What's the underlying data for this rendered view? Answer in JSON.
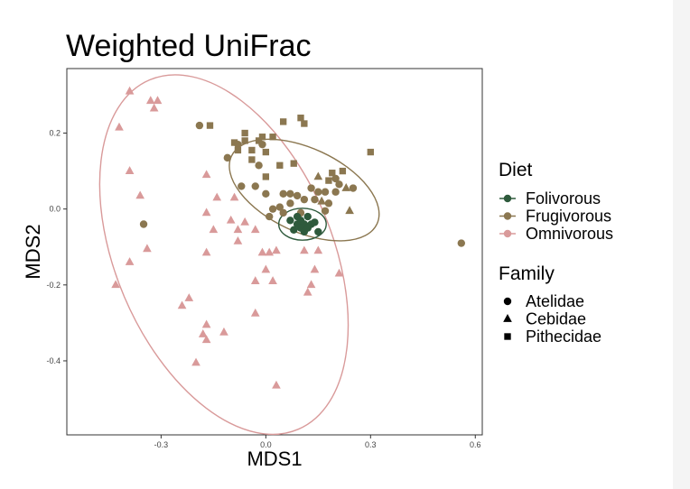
{
  "chart_data": {
    "type": "scatter",
    "title": "Weighted UniFrac",
    "xlabel": "MDS1",
    "ylabel": "MDS2",
    "xlim": [
      -0.57,
      0.62
    ],
    "ylim": [
      -0.595,
      0.37
    ],
    "x_ticks": [
      -0.3,
      0.0,
      0.3,
      0.6
    ],
    "x_tick_labels": [
      "-0.3",
      "0.0",
      "0.3",
      "0.6"
    ],
    "y_ticks": [
      -0.4,
      -0.2,
      0.0,
      0.2
    ],
    "y_tick_labels": [
      "-0.4",
      "-0.2",
      "0.0",
      "0.2"
    ],
    "grid": false,
    "legend_position": "right",
    "legends": [
      {
        "title": "Diet",
        "entries": [
          {
            "label": "Folivorous",
            "color": "#2e5a3c"
          },
          {
            "label": "Frugivorous",
            "color": "#8b7750"
          },
          {
            "label": "Omnivorous",
            "color": "#d99a9a"
          }
        ]
      },
      {
        "title": "Family",
        "entries": [
          {
            "label": "Atelidae",
            "shape": "circle"
          },
          {
            "label": "Cebidae",
            "shape": "triangle"
          },
          {
            "label": "Pithecidae",
            "shape": "square"
          }
        ]
      }
    ],
    "ellipses": [
      {
        "diet": "Omnivorous",
        "center": [
          -0.12,
          -0.12
        ],
        "rx": 0.31,
        "ry": 0.5,
        "angle": -23,
        "color": "#d99a9a"
      },
      {
        "diet": "Frugivorous",
        "center": [
          0.11,
          0.05
        ],
        "rx": 0.23,
        "ry": 0.11,
        "angle": 25,
        "color": "#8b7750"
      },
      {
        "diet": "Folivorous",
        "center": [
          0.105,
          -0.04
        ],
        "rx": 0.068,
        "ry": 0.042,
        "angle": 0,
        "color": "#2e5a3c"
      }
    ],
    "series": [
      {
        "name": "Folivorous",
        "color": "#2e5a3c",
        "points": [
          [
            0.09,
            -0.02,
            "circle"
          ],
          [
            0.12,
            -0.02,
            "circle"
          ],
          [
            0.09,
            -0.04,
            "circle"
          ],
          [
            0.11,
            -0.04,
            "circle"
          ],
          [
            0.13,
            -0.04,
            "circle"
          ],
          [
            0.1,
            -0.05,
            "circle"
          ],
          [
            0.12,
            -0.05,
            "circle"
          ],
          [
            0.08,
            -0.055,
            "circle"
          ],
          [
            0.11,
            -0.06,
            "circle"
          ],
          [
            0.15,
            -0.06,
            "circle"
          ],
          [
            0.07,
            -0.03,
            "circle"
          ],
          [
            0.1,
            -0.03,
            "circle"
          ],
          [
            0.14,
            -0.035,
            "circle"
          ]
        ]
      },
      {
        "name": "Frugivorous",
        "color": "#8b7750",
        "points": [
          [
            -0.19,
            0.22,
            "circle"
          ],
          [
            -0.16,
            0.22,
            "square"
          ],
          [
            0.11,
            0.225,
            "square"
          ],
          [
            -0.09,
            0.175,
            "square"
          ],
          [
            -0.06,
            0.18,
            "square"
          ],
          [
            -0.08,
            0.17,
            "circle"
          ],
          [
            -0.02,
            0.18,
            "square"
          ],
          [
            -0.01,
            0.19,
            "square"
          ],
          [
            -0.01,
            0.17,
            "circle"
          ],
          [
            -0.04,
            0.155,
            "square"
          ],
          [
            0.0,
            0.15,
            "square"
          ],
          [
            -0.08,
            0.155,
            "square"
          ],
          [
            -0.11,
            0.135,
            "circle"
          ],
          [
            -0.04,
            0.13,
            "square"
          ],
          [
            0.02,
            0.19,
            "square"
          ],
          [
            -0.06,
            0.2,
            "square"
          ],
          [
            0.05,
            0.23,
            "square"
          ],
          [
            0.1,
            0.24,
            "square"
          ],
          [
            -0.02,
            0.115,
            "circle"
          ],
          [
            0.04,
            0.115,
            "square"
          ],
          [
            0.08,
            0.12,
            "square"
          ],
          [
            0.0,
            0.085,
            "square"
          ],
          [
            0.19,
            0.095,
            "square"
          ],
          [
            0.22,
            0.1,
            "square"
          ],
          [
            0.3,
            0.15,
            "square"
          ],
          [
            0.2,
            0.08,
            "circle"
          ],
          [
            0.15,
            0.085,
            "triangle"
          ],
          [
            0.18,
            0.075,
            "square"
          ],
          [
            0.21,
            0.065,
            "circle"
          ],
          [
            0.23,
            0.055,
            "triangle"
          ],
          [
            0.25,
            0.055,
            "circle"
          ],
          [
            0.2,
            0.045,
            "circle"
          ],
          [
            0.17,
            0.045,
            "circle"
          ],
          [
            -0.07,
            0.06,
            "circle"
          ],
          [
            -0.03,
            0.06,
            "circle"
          ],
          [
            0.05,
            0.04,
            "circle"
          ],
          [
            0.07,
            0.04,
            "circle"
          ],
          [
            0.0,
            0.04,
            "circle"
          ],
          [
            0.09,
            0.035,
            "circle"
          ],
          [
            0.13,
            0.055,
            "circle"
          ],
          [
            0.15,
            0.045,
            "circle"
          ],
          [
            0.11,
            0.025,
            "circle"
          ],
          [
            0.14,
            0.025,
            "circle"
          ],
          [
            0.16,
            0.02,
            "triangle"
          ],
          [
            0.18,
            0.015,
            "circle"
          ],
          [
            0.07,
            0.015,
            "circle"
          ],
          [
            0.04,
            0.005,
            "circle"
          ],
          [
            0.02,
            0.0,
            "circle"
          ],
          [
            0.05,
            -0.01,
            "circle"
          ],
          [
            0.1,
            -0.01,
            "circle"
          ],
          [
            0.17,
            -0.005,
            "circle"
          ],
          [
            0.24,
            -0.005,
            "triangle"
          ],
          [
            0.01,
            -0.02,
            "circle"
          ],
          [
            -0.35,
            -0.04,
            "circle"
          ],
          [
            0.56,
            -0.09,
            "circle"
          ]
        ]
      },
      {
        "name": "Omnivorous",
        "color": "#d99a9a",
        "points": [
          [
            -0.39,
            0.31,
            "triangle"
          ],
          [
            -0.33,
            0.285,
            "triangle"
          ],
          [
            -0.31,
            0.285,
            "triangle"
          ],
          [
            -0.32,
            0.265,
            "triangle"
          ],
          [
            -0.42,
            0.215,
            "triangle"
          ],
          [
            -0.39,
            0.1,
            "triangle"
          ],
          [
            -0.36,
            0.035,
            "triangle"
          ],
          [
            -0.17,
            0.09,
            "triangle"
          ],
          [
            -0.14,
            0.03,
            "triangle"
          ],
          [
            -0.09,
            0.03,
            "triangle"
          ],
          [
            -0.17,
            -0.01,
            "triangle"
          ],
          [
            -0.1,
            -0.03,
            "triangle"
          ],
          [
            -0.06,
            -0.035,
            "triangle"
          ],
          [
            -0.03,
            -0.055,
            "triangle"
          ],
          [
            -0.15,
            -0.055,
            "triangle"
          ],
          [
            -0.08,
            -0.055,
            "triangle"
          ],
          [
            -0.08,
            -0.085,
            "triangle"
          ],
          [
            -0.34,
            -0.105,
            "triangle"
          ],
          [
            -0.17,
            -0.115,
            "triangle"
          ],
          [
            -0.01,
            -0.115,
            "triangle"
          ],
          [
            0.01,
            -0.115,
            "triangle"
          ],
          [
            0.03,
            -0.11,
            "triangle"
          ],
          [
            0.11,
            -0.11,
            "triangle"
          ],
          [
            0.15,
            -0.11,
            "triangle"
          ],
          [
            -0.39,
            -0.14,
            "triangle"
          ],
          [
            0.0,
            -0.16,
            "triangle"
          ],
          [
            0.14,
            -0.16,
            "triangle"
          ],
          [
            0.21,
            -0.17,
            "triangle"
          ],
          [
            -0.43,
            -0.2,
            "triangle"
          ],
          [
            -0.03,
            -0.19,
            "triangle"
          ],
          [
            0.02,
            -0.19,
            "triangle"
          ],
          [
            0.13,
            -0.2,
            "triangle"
          ],
          [
            0.12,
            -0.22,
            "triangle"
          ],
          [
            -0.22,
            -0.235,
            "triangle"
          ],
          [
            -0.24,
            -0.255,
            "triangle"
          ],
          [
            -0.03,
            -0.275,
            "triangle"
          ],
          [
            -0.17,
            -0.305,
            "triangle"
          ],
          [
            -0.18,
            -0.33,
            "triangle"
          ],
          [
            -0.12,
            -0.325,
            "triangle"
          ],
          [
            -0.17,
            -0.345,
            "triangle"
          ],
          [
            -0.2,
            -0.405,
            "triangle"
          ],
          [
            0.03,
            -0.465,
            "triangle"
          ]
        ]
      }
    ]
  }
}
